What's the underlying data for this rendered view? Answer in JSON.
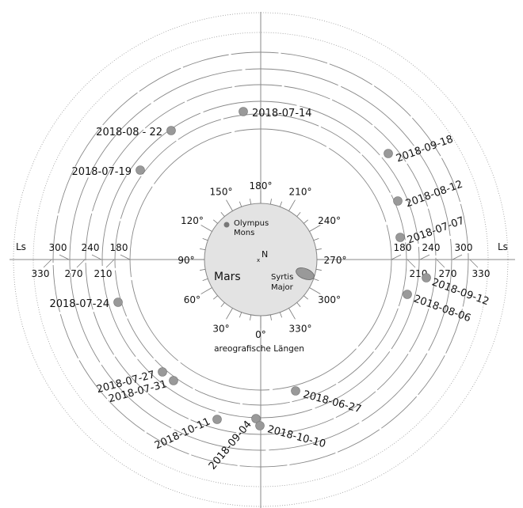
{
  "planet": {
    "name": "Mars",
    "north": "N",
    "north_marker": "x"
  },
  "features": [
    {
      "name": "Olympus Mons",
      "lines": [
        "Olympus",
        "Mons"
      ]
    },
    {
      "name": "Syrtis Major",
      "lines": [
        "Syrtis",
        "Major"
      ]
    }
  ],
  "longitude_caption": "areografische Längen",
  "longitude_labels": [
    "0°",
    "30°",
    "60°",
    "90°",
    "120°",
    "150°",
    "180°",
    "210°",
    "240°",
    "270°",
    "300°",
    "330°"
  ],
  "ls_label": "Ls",
  "ls_values": [
    "180",
    "210",
    "240",
    "270",
    "300",
    "330"
  ],
  "observations": [
    "2018-07-14",
    "2018-08 - 22",
    "2018-09-18",
    "2018-07-19",
    "2018-08-12",
    "2018-07-07",
    "2018-09-12",
    "2018-08-06",
    "2018-07-24",
    "2018-07-27",
    "2018-07-31",
    "2018-06-27",
    "2018-10-11",
    "2018-09-04",
    "2018-10-10"
  ],
  "colors": {
    "disk": "#e3e3e3",
    "dot": "#999999",
    "line": "#888888"
  }
}
